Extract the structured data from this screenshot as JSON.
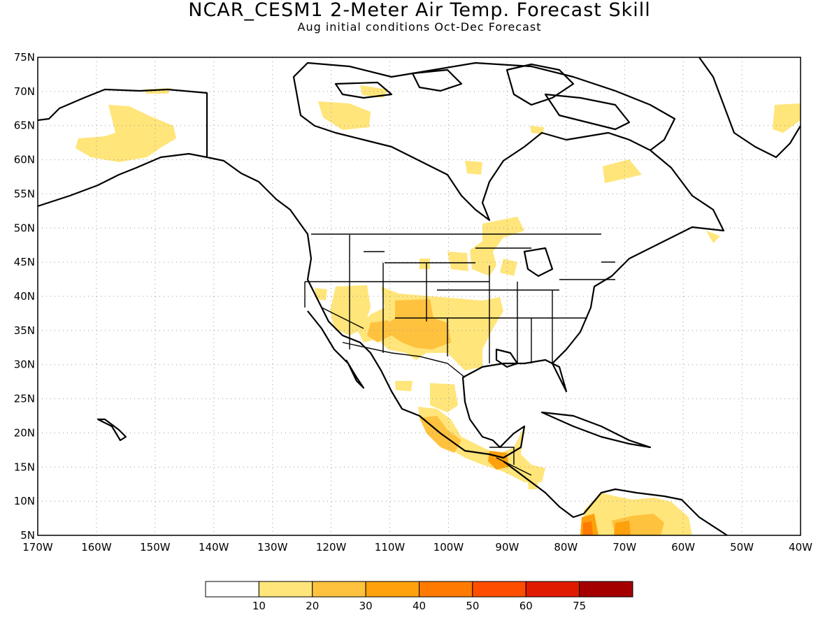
{
  "title": "NCAR_CESM1 2-Meter Air Temp. Forecast Skill",
  "subtitle": "Aug initial conditions  Oct-Dec Forecast",
  "map": {
    "lon_range": [
      -170,
      -40
    ],
    "lat_range": [
      5,
      75
    ],
    "lon_ticks": [
      "170W",
      "160W",
      "150W",
      "140W",
      "130W",
      "120W",
      "110W",
      "100W",
      "90W",
      "80W",
      "70W",
      "60W",
      "50W",
      "40W"
    ],
    "lat_ticks": [
      "75N",
      "70N",
      "65N",
      "60N",
      "55N",
      "50N",
      "45N",
      "40N",
      "35N",
      "30N",
      "25N",
      "20N",
      "15N",
      "10N",
      "5N"
    ],
    "grid": true
  },
  "colorbar": {
    "labels": [
      "10",
      "20",
      "30",
      "40",
      "50",
      "60",
      "75"
    ],
    "colors": [
      "#ffffff",
      "#ffe57a",
      "#ffc23f",
      "#ffa10c",
      "#ff7a00",
      "#ff4d00",
      "#e01a00",
      "#a50000"
    ]
  }
}
